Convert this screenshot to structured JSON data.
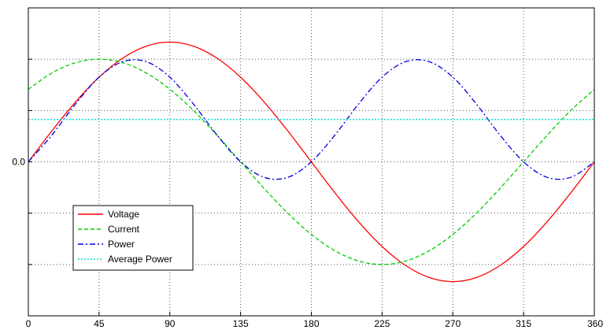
{
  "chart_data": {
    "type": "line",
    "title": "",
    "xlabel": "",
    "ylabel": "",
    "xlim": [
      0,
      360
    ],
    "ylim": [
      -1.5,
      1.5
    ],
    "grid": true,
    "legend_position": "bottom-left",
    "x_ticks": [
      "0",
      "45",
      "90",
      "135",
      "180",
      "225",
      "270",
      "315",
      "360"
    ],
    "y_ticks": [
      "0.0"
    ],
    "x": [
      0,
      15,
      30,
      45,
      60,
      75,
      90,
      105,
      120,
      135,
      150,
      165,
      180,
      195,
      210,
      225,
      240,
      255,
      270,
      285,
      300,
      315,
      330,
      345,
      360
    ],
    "series": [
      {
        "name": "Voltage",
        "color": "#ff0000",
        "style": "solid",
        "values": [
          0,
          0.302,
          0.583,
          0.825,
          1.01,
          1.127,
          1.167,
          1.127,
          1.01,
          0.825,
          0.583,
          0.302,
          0,
          -0.302,
          -0.583,
          -0.825,
          -1.01,
          -1.127,
          -1.167,
          -1.127,
          -1.01,
          -0.825,
          -0.583,
          -0.302,
          0
        ]
      },
      {
        "name": "Current",
        "color": "#00cc00",
        "style": "dashed",
        "values": [
          0.707,
          0.866,
          0.966,
          1.0,
          0.966,
          0.866,
          0.707,
          0.5,
          0.259,
          0,
          -0.259,
          -0.5,
          -0.707,
          -0.866,
          -0.966,
          -1.0,
          -0.966,
          -0.866,
          -0.707,
          -0.5,
          -0.259,
          0,
          0.259,
          0.5,
          0.707
        ]
      },
      {
        "name": "Power",
        "color": "#0000dd",
        "style": "dashdot",
        "values": [
          0,
          0.261,
          0.563,
          0.825,
          0.976,
          0.976,
          0.825,
          0.563,
          0.261,
          0,
          -0.151,
          -0.151,
          0,
          0.261,
          0.563,
          0.825,
          0.976,
          0.976,
          0.825,
          0.563,
          0.261,
          0,
          -0.151,
          -0.151,
          0
        ]
      },
      {
        "name": "Average Power",
        "color": "#00dddd",
        "style": "dotted",
        "values": [
          0.413,
          0.413,
          0.413,
          0.413,
          0.413,
          0.413,
          0.413,
          0.413,
          0.413,
          0.413,
          0.413,
          0.413,
          0.413,
          0.413,
          0.413,
          0.413,
          0.413,
          0.413,
          0.413,
          0.413,
          0.413,
          0.413,
          0.413,
          0.413,
          0.413
        ]
      }
    ]
  }
}
